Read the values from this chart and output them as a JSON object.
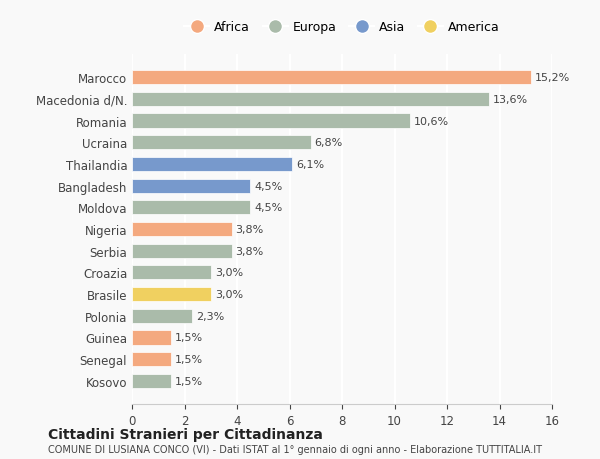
{
  "countries": [
    "Marocco",
    "Macedonia d/N.",
    "Romania",
    "Ucraina",
    "Thailandia",
    "Bangladesh",
    "Moldova",
    "Nigeria",
    "Serbia",
    "Croazia",
    "Brasile",
    "Polonia",
    "Guinea",
    "Senegal",
    "Kosovo"
  ],
  "values": [
    15.2,
    13.6,
    10.6,
    6.8,
    6.1,
    4.5,
    4.5,
    3.8,
    3.8,
    3.0,
    3.0,
    2.3,
    1.5,
    1.5,
    1.5
  ],
  "labels": [
    "15,2%",
    "13,6%",
    "10,6%",
    "6,8%",
    "6,1%",
    "4,5%",
    "4,5%",
    "3,8%",
    "3,8%",
    "3,0%",
    "3,0%",
    "2,3%",
    "1,5%",
    "1,5%",
    "1,5%"
  ],
  "continents": [
    "Africa",
    "Europa",
    "Europa",
    "Europa",
    "Asia",
    "Asia",
    "Europa",
    "Africa",
    "Europa",
    "Europa",
    "America",
    "Europa",
    "Africa",
    "Africa",
    "Europa"
  ],
  "colors": {
    "Africa": "#F4A97F",
    "Europa": "#AABBAA",
    "Asia": "#7799CC",
    "America": "#F0D060"
  },
  "legend_order": [
    "Africa",
    "Europa",
    "Asia",
    "America"
  ],
  "xlim": [
    0,
    16
  ],
  "xticks": [
    0,
    2,
    4,
    6,
    8,
    10,
    12,
    14,
    16
  ],
  "title": "Cittadini Stranieri per Cittadinanza",
  "subtitle": "COMUNE DI LUSIANA CONCO (VI) - Dati ISTAT al 1° gennaio di ogni anno - Elaborazione TUTTITALIA.IT",
  "bg_color": "#f9f9f9",
  "grid_color": "#ffffff"
}
